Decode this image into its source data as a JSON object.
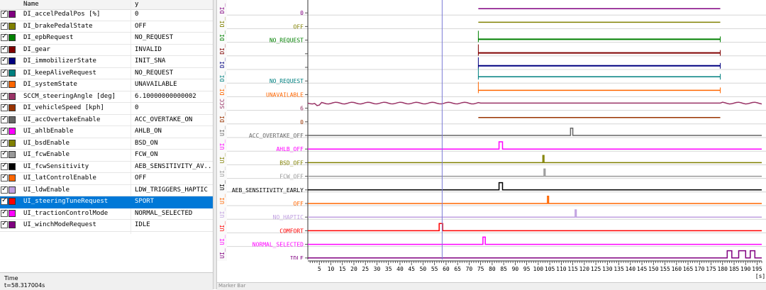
{
  "list": {
    "col_name": "Name",
    "col_value": "y",
    "rows": [
      {
        "name": "DI_accelPedalPos [%]",
        "value": "0",
        "color": "#800080"
      },
      {
        "name": "DI_brakePedalState",
        "value": "OFF",
        "color": "#808000"
      },
      {
        "name": "DI_epbRequest",
        "value": "NO_REQUEST",
        "color": "#008000"
      },
      {
        "name": "DI_gear",
        "value": "INVALID",
        "color": "#800000"
      },
      {
        "name": "DI_immobilizerState",
        "value": "INIT_SNA",
        "color": "#000080"
      },
      {
        "name": "DI_keepAliveRequest",
        "value": "NO_REQUEST",
        "color": "#008080"
      },
      {
        "name": "DI_systemState",
        "value": "UNAVAILABLE",
        "color": "#ff6600"
      },
      {
        "name": "SCCM_steeringAngle [deg]",
        "value": "6.10000000000002",
        "color": "#993366"
      },
      {
        "name": "DI_vehicleSpeed [kph]",
        "value": "0",
        "color": "#993300"
      },
      {
        "name": "UI_accOvertakeEnable",
        "value": "ACC_OVERTAKE_ON",
        "color": "#666666"
      },
      {
        "name": "UI_ahlbEnable",
        "value": "AHLB_ON",
        "color": "#ff00ff"
      },
      {
        "name": "UI_bsdEnable",
        "value": "BSD_ON",
        "color": "#808000"
      },
      {
        "name": "UI_fcwEnable",
        "value": "FCW_ON",
        "color": "#999999"
      },
      {
        "name": "UI_fcwSensitivity",
        "value": "AEB_SENSITIVITY_AV...",
        "color": "#000000"
      },
      {
        "name": "UI_latControlEnable",
        "value": "OFF",
        "color": "#ff6600"
      },
      {
        "name": "UI_ldwEnable",
        "value": "LDW_TRIGGERS_HAPTIC",
        "color": "#c0a0e0"
      },
      {
        "name": "UI_steeringTuneRequest",
        "value": "SPORT",
        "color": "#ff0000"
      },
      {
        "name": "UI_tractionControlMode",
        "value": "NORMAL_SELECTED",
        "color": "#ff00ff"
      },
      {
        "name": "UI_winchModeRequest",
        "value": "IDLE",
        "color": "#800080"
      }
    ],
    "selected_index": 16
  },
  "time": {
    "label": "Time",
    "value": "t=58.317004s"
  },
  "lanes": [
    {
      "tag": "DI_",
      "label": "0",
      "color": "#800080"
    },
    {
      "tag": "DI_",
      "label": "OFF",
      "color": "#808000"
    },
    {
      "tag": "DI_",
      "label": "NO_REQUEST",
      "color": "#008000"
    },
    {
      "tag": "DI_",
      "label": "",
      "color": "#800000"
    },
    {
      "tag": "DI_",
      "label": "",
      "color": "#000080"
    },
    {
      "tag": "DI_",
      "label": "NO_REQUEST",
      "color": "#008080"
    },
    {
      "tag": "DI_",
      "label": "UNAVAILABLE",
      "color": "#ff6600"
    },
    {
      "tag": "SCC",
      "label": "6",
      "color": "#993366"
    },
    {
      "tag": "DI_",
      "label": "0",
      "color": "#993300"
    },
    {
      "tag": "UI_",
      "label": "ACC_OVERTAKE_OFF",
      "color": "#666666"
    },
    {
      "tag": "UI_",
      "label": "AHLB_OFF",
      "color": "#ff00ff"
    },
    {
      "tag": "UI_",
      "label": "BSD_OFF",
      "color": "#808000"
    },
    {
      "tag": "UI_",
      "label": "FCW_OFF",
      "color": "#999999"
    },
    {
      "tag": "UI_",
      "label": "AEB_SENSITIVITY_EARLY",
      "color": "#000000"
    },
    {
      "tag": "UI_",
      "label": "OFF",
      "color": "#ff6600"
    },
    {
      "tag": "UI_",
      "label": "NO_HAPTIC",
      "color": "#c0a0e0"
    },
    {
      "tag": "UI_",
      "label": "COMFORT",
      "color": "#ff0000"
    },
    {
      "tag": "UI_",
      "label": "NORMAL_SELECTED",
      "color": "#ff00ff"
    },
    {
      "tag": "UI_",
      "label": "IDLE",
      "color": "#800080"
    }
  ],
  "chart_data": {
    "type": "line",
    "xlabel": "[s]",
    "xlim": [
      0,
      197
    ],
    "x_ticks": [
      5,
      10,
      15,
      20,
      25,
      30,
      35,
      40,
      45,
      50,
      55,
      60,
      65,
      70,
      75,
      80,
      85,
      90,
      95,
      100,
      105,
      110,
      115,
      120,
      125,
      130,
      135,
      140,
      145,
      150,
      155,
      160,
      165,
      170,
      175,
      180,
      185,
      190,
      195
    ],
    "cursor_x": 58.3,
    "segments": {
      "DI_accelPedalPos": [
        74,
        179
      ],
      "DI_brakePedalState": [
        74,
        179
      ],
      "DI_epbRequest": [
        74,
        179
      ],
      "DI_gear": [
        74,
        179
      ],
      "DI_immobilizerState": [
        74,
        179
      ],
      "DI_keepAliveRequest": [
        74,
        179
      ],
      "DI_systemState": [
        74,
        179
      ],
      "DI_vehicleSpeed": [
        74,
        179
      ]
    },
    "pulses": {
      "UI_accOvertakeEnable": [
        [
          114,
          115
        ]
      ],
      "UI_ahlbEnable": [
        [
          83,
          84.5
        ]
      ],
      "UI_bsdEnable": [
        [
          102,
          102.5
        ]
      ],
      "UI_fcwEnable": [
        [
          102.5,
          103
        ]
      ],
      "UI_fcwSensitivity": [
        [
          83,
          84.5
        ]
      ],
      "UI_latControlEnable": [
        [
          104,
          104.5
        ]
      ],
      "UI_ldwEnable": [
        [
          116,
          116.5
        ]
      ],
      "UI_steeringTuneRequest": [
        [
          57,
          58.5
        ]
      ],
      "UI_tractionControlMode": [
        [
          76,
          77
        ]
      ],
      "UI_winchModeRequest": [
        [
          182,
          184
        ],
        [
          187,
          190
        ],
        [
          192,
          194
        ]
      ]
    }
  }
}
